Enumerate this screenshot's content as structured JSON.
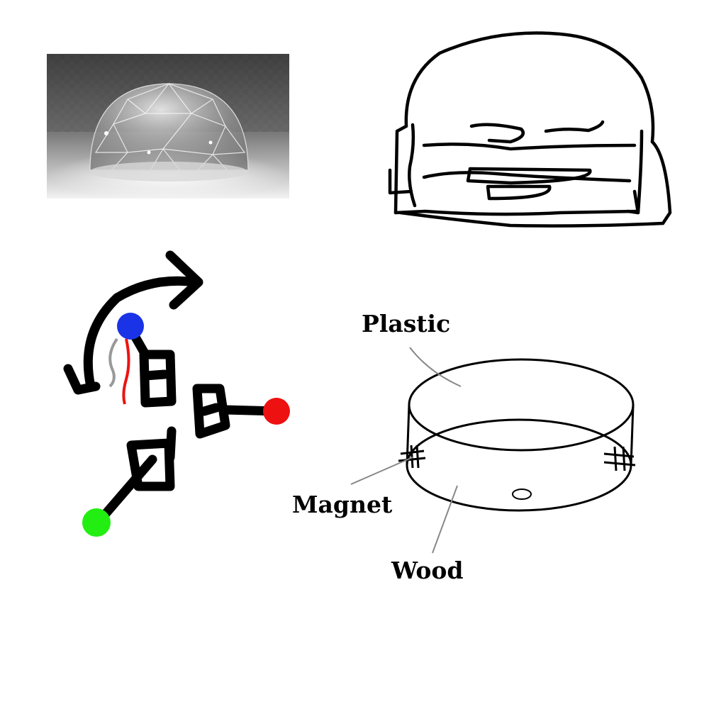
{
  "labels": {
    "plastic": "Plastic",
    "magnet": "Magnet",
    "wood": "Wood"
  },
  "icons": {
    "dome_photo": "geodesic-dome-photo",
    "sketch": "dome-frame-sketch",
    "joints": "rotating-joint-arms",
    "base": "cylindrical-base"
  },
  "colors": {
    "ink": "#000000",
    "blue_node": "#1a33e6",
    "red_node": "#ee1111",
    "green_node": "#22ee11",
    "leader": "#888888",
    "red_wire": "#ee1111",
    "grey_wire": "#999999"
  }
}
